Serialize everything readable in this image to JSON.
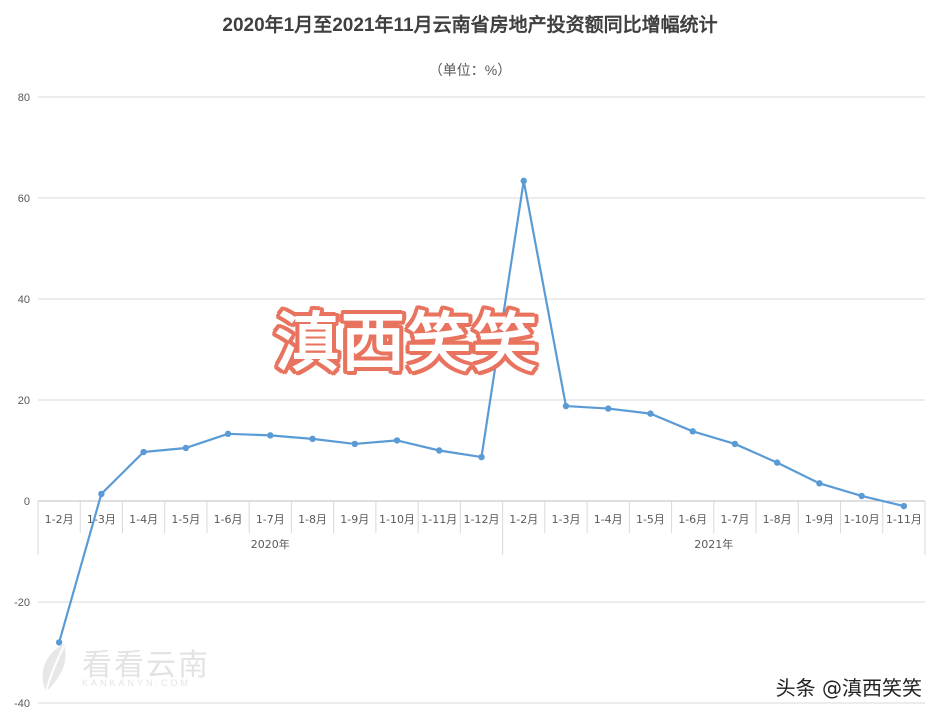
{
  "chart_data": {
    "type": "line",
    "title": "2020年1月至2021年11月云南省房地产投资额同比增幅统计",
    "subtitle": "（单位：%）",
    "ylim": [
      -40,
      80
    ],
    "yticks": [
      80,
      60,
      40,
      20,
      0,
      -20,
      -40
    ],
    "grid": true,
    "legend": "none",
    "color": "#5b9bd5",
    "groups": [
      {
        "label": "2020年",
        "categories": [
          "1-2月",
          "1-3月",
          "1-4月",
          "1-5月",
          "1-6月",
          "1-7月",
          "1-8月",
          "1-9月",
          "1-10月",
          "1-11月",
          "1-12月"
        ]
      },
      {
        "label": "2021年",
        "categories": [
          "1-2月",
          "1-3月",
          "1-4月",
          "1-5月",
          "1-6月",
          "1-7月",
          "1-8月",
          "1-9月",
          "1-10月",
          "1-11月"
        ]
      }
    ],
    "values": [
      -28.0,
      1.4,
      9.7,
      10.5,
      13.3,
      13.0,
      12.3,
      11.3,
      12.0,
      10.0,
      8.7,
      63.4,
      18.8,
      18.3,
      17.3,
      13.8,
      11.3,
      7.6,
      3.5,
      1.0,
      -1.0
    ]
  },
  "watermarks": {
    "overlay": "滇西笑笑",
    "logo": "看看云南",
    "logo_sub": "KANKANYN.COM",
    "source": "头条 @滇西笑笑"
  }
}
